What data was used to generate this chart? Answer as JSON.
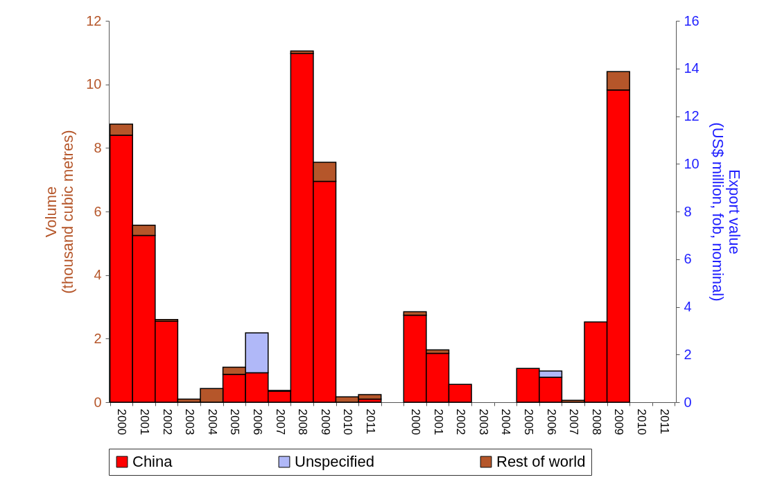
{
  "chart_data": {
    "type": "bar",
    "stacked": true,
    "ylabel": "Volume\n(thousand cubic metres)",
    "y2label": "Export value\n(US$ million, fob, nominal)",
    "categories": [
      "2000",
      "2001",
      "2002",
      "2003",
      "2004",
      "2005",
      "2006",
      "2007",
      "2008",
      "2009",
      "2010",
      "2011",
      null,
      "2000",
      "2001",
      "2002",
      "2003",
      "2004",
      "2005",
      "2006",
      "2007",
      "2008",
      "2009",
      "2010",
      "2011"
    ],
    "series": [
      {
        "name": "China",
        "color": "#ff0000",
        "values": [
          8.4,
          5.25,
          2.55,
          null,
          null,
          0.88,
          0.93,
          0.35,
          10.97,
          6.95,
          null,
          0.1,
          null,
          null,
          null,
          null,
          null,
          null,
          null,
          null,
          null,
          null,
          null,
          null,
          null
        ]
      },
      {
        "name": "Unspecified",
        "color": "#b0b8f8",
        "values": [
          null,
          null,
          null,
          null,
          null,
          null,
          1.25,
          null,
          null,
          null,
          null,
          null,
          null,
          null,
          null,
          null,
          null,
          null,
          null,
          null,
          null,
          null,
          null,
          null,
          null
        ]
      },
      {
        "name": "Rest of world",
        "color": "#b5562a",
        "values": [
          0.35,
          0.32,
          0.05,
          0.1,
          0.43,
          0.22,
          null,
          0.02,
          0.08,
          0.6,
          0.17,
          0.14,
          null,
          null,
          null,
          null,
          null,
          null,
          null,
          null,
          null,
          null,
          null,
          null,
          null
        ]
      },
      {
        "color": "#ff0000",
        "axis": "y2",
        "values": [
          null,
          null,
          null,
          null,
          null,
          null,
          null,
          null,
          null,
          null,
          null,
          null,
          null,
          3.65,
          2.05,
          0.75,
          null,
          null,
          1.42,
          1.05,
          null,
          3.37,
          13.1,
          null,
          null
        ]
      },
      {
        "color": "#b0b8f8",
        "axis": "y2",
        "values": [
          null,
          null,
          null,
          null,
          null,
          null,
          null,
          null,
          null,
          null,
          null,
          null,
          null,
          null,
          null,
          null,
          null,
          null,
          null,
          0.26,
          null,
          null,
          null,
          null,
          null
        ]
      },
      {
        "color": "#b5562a",
        "axis": "y2",
        "values": [
          null,
          null,
          null,
          null,
          null,
          null,
          null,
          null,
          null,
          null,
          null,
          null,
          null,
          0.15,
          0.15,
          null,
          null,
          null,
          null,
          null,
          0.08,
          null,
          0.77,
          null,
          null
        ]
      }
    ],
    "ylim": [
      0,
      12
    ],
    "yticks": [
      0,
      2,
      4,
      6,
      8,
      10,
      12
    ],
    "y2lim": [
      0,
      16
    ],
    "y2ticks": [
      0,
      2,
      4,
      6,
      8,
      10,
      12,
      14,
      16
    ],
    "legend": "bottom"
  }
}
